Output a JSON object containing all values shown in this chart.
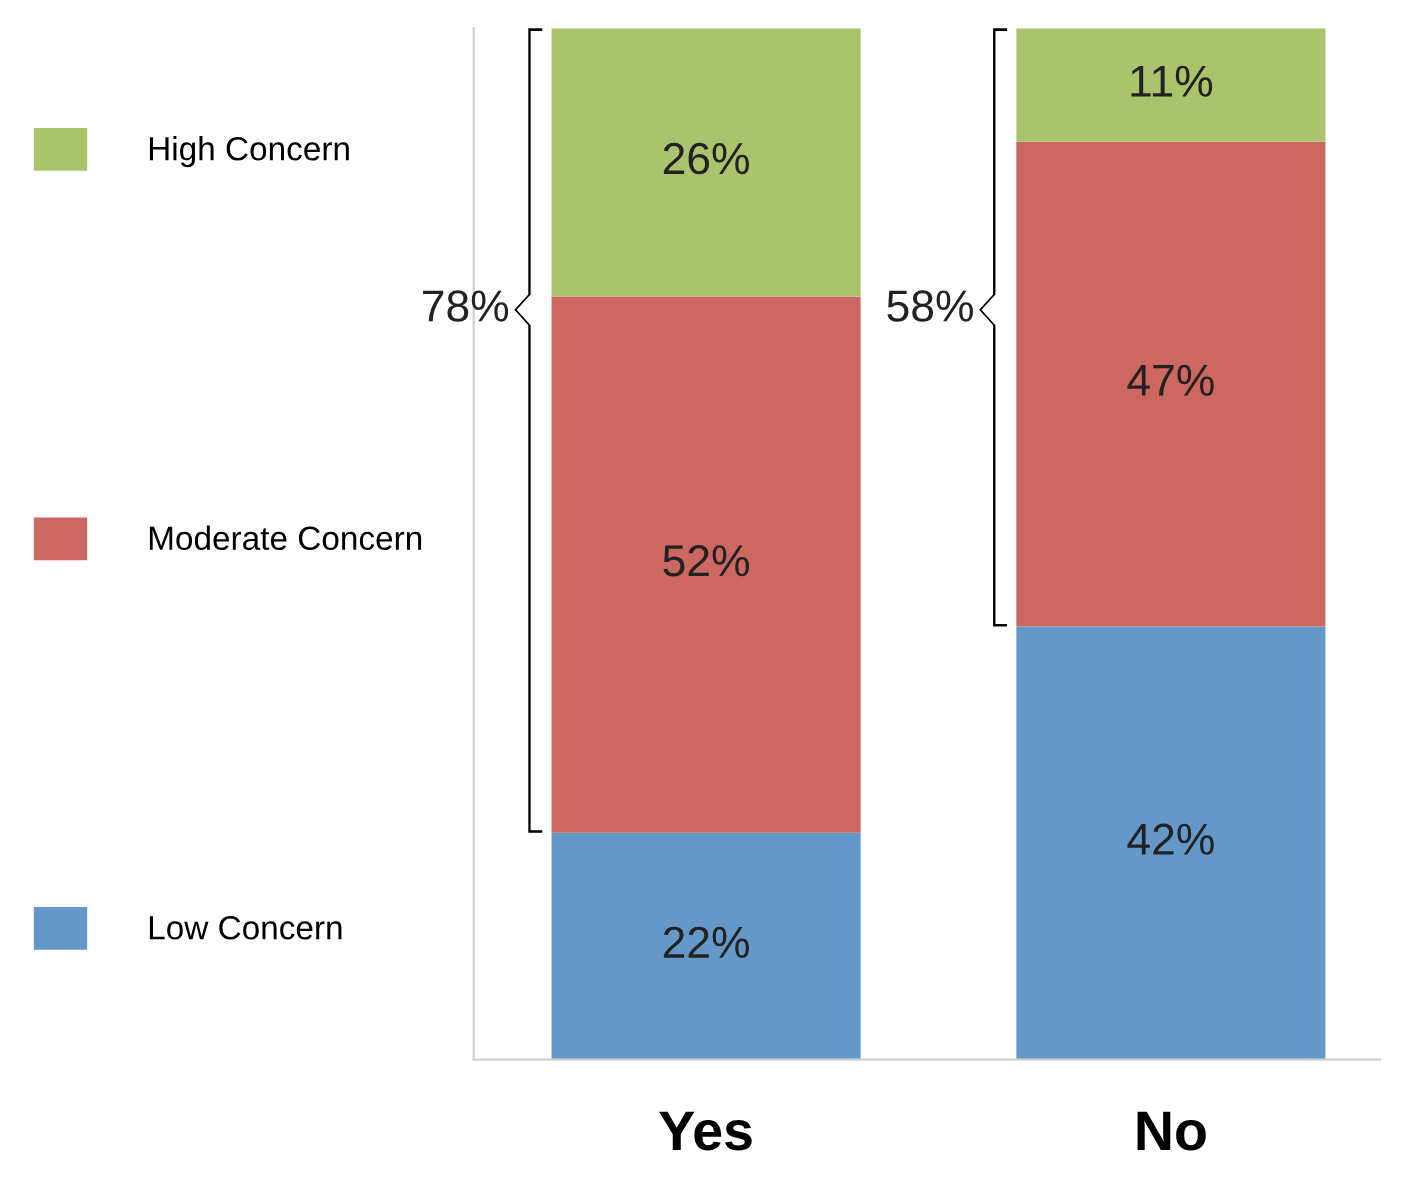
{
  "chart_data": {
    "type": "bar",
    "stacked": true,
    "categories": [
      "Yes",
      "No"
    ],
    "series": [
      {
        "name": "Low Concern",
        "color": "#6498c9",
        "values": [
          22,
          42
        ],
        "value_labels": [
          "22%",
          "42%"
        ]
      },
      {
        "name": "Moderate Concern",
        "color": "#cd6761",
        "values": [
          52,
          47
        ],
        "value_labels": [
          "52%",
          "47%"
        ]
      },
      {
        "name": "High Concern",
        "color": "#a9c46c",
        "values": [
          26,
          11
        ],
        "value_labels": [
          "26%",
          "11%"
        ]
      }
    ],
    "annotations": [
      "78%",
      "58%"
    ],
    "legend": "left",
    "grid": false,
    "tick_labels": "x"
  }
}
